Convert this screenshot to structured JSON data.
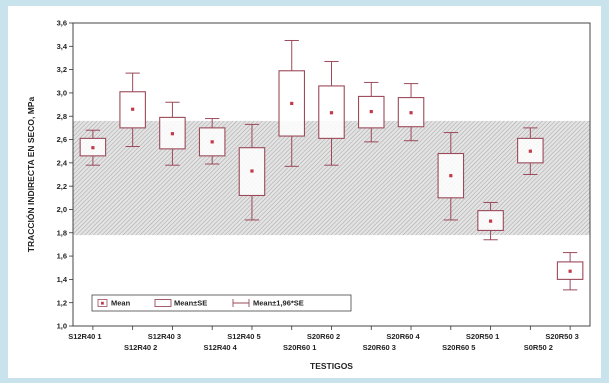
{
  "chart_data": {
    "type": "box",
    "xlabel": "TESTIGOS",
    "ylabel": "TRACCIÓN INDIRECTA EN SECO, MPa",
    "ylim": [
      1.0,
      3.6
    ],
    "yticks": [
      "1,0",
      "1,2",
      "1,4",
      "1,6",
      "1,8",
      "2,0",
      "2,2",
      "2,4",
      "2,6",
      "2,8",
      "3,0",
      "3,2",
      "3,4",
      "3,6"
    ],
    "grid": false,
    "shaded_band": [
      1.78,
      2.76
    ],
    "categories": [
      "S12R40 1",
      "S12R40 2",
      "S12R40 3",
      "S12R40 4",
      "S12R40 5",
      "S20R60 1",
      "S20R60 2",
      "S20R60 3",
      "S20R60 4",
      "S20R60 5",
      "S20R50 1",
      "S0R50 2",
      "S20R50 3"
    ],
    "series": [
      {
        "name": "Mean",
        "values": [
          2.53,
          2.86,
          2.65,
          2.58,
          2.33,
          2.91,
          2.83,
          2.84,
          2.83,
          2.29,
          1.9,
          2.5,
          1.47
        ]
      },
      {
        "name": "Mean±SE",
        "low": [
          2.46,
          2.7,
          2.52,
          2.46,
          2.12,
          2.63,
          2.61,
          2.7,
          2.71,
          2.1,
          1.82,
          2.4,
          1.4
        ],
        "high": [
          2.61,
          3.01,
          2.79,
          2.7,
          2.53,
          3.19,
          3.06,
          2.97,
          2.96,
          2.48,
          1.99,
          2.61,
          1.55
        ]
      },
      {
        "name": "Mean±1,96*SE",
        "low": [
          2.38,
          2.54,
          2.38,
          2.39,
          1.91,
          2.37,
          2.38,
          2.58,
          2.59,
          1.91,
          1.74,
          2.3,
          1.31
        ],
        "high": [
          2.68,
          3.17,
          2.92,
          2.78,
          2.73,
          3.45,
          3.27,
          3.09,
          3.08,
          2.66,
          2.06,
          2.7,
          1.63
        ]
      }
    ],
    "legend_position": "bottom-left",
    "colors": {
      "background": "#c9e3ec",
      "plot": "#ffffff",
      "box": "#9b4a5a",
      "mean_point": "#c23a4a",
      "band": "#b0b0b0"
    }
  }
}
